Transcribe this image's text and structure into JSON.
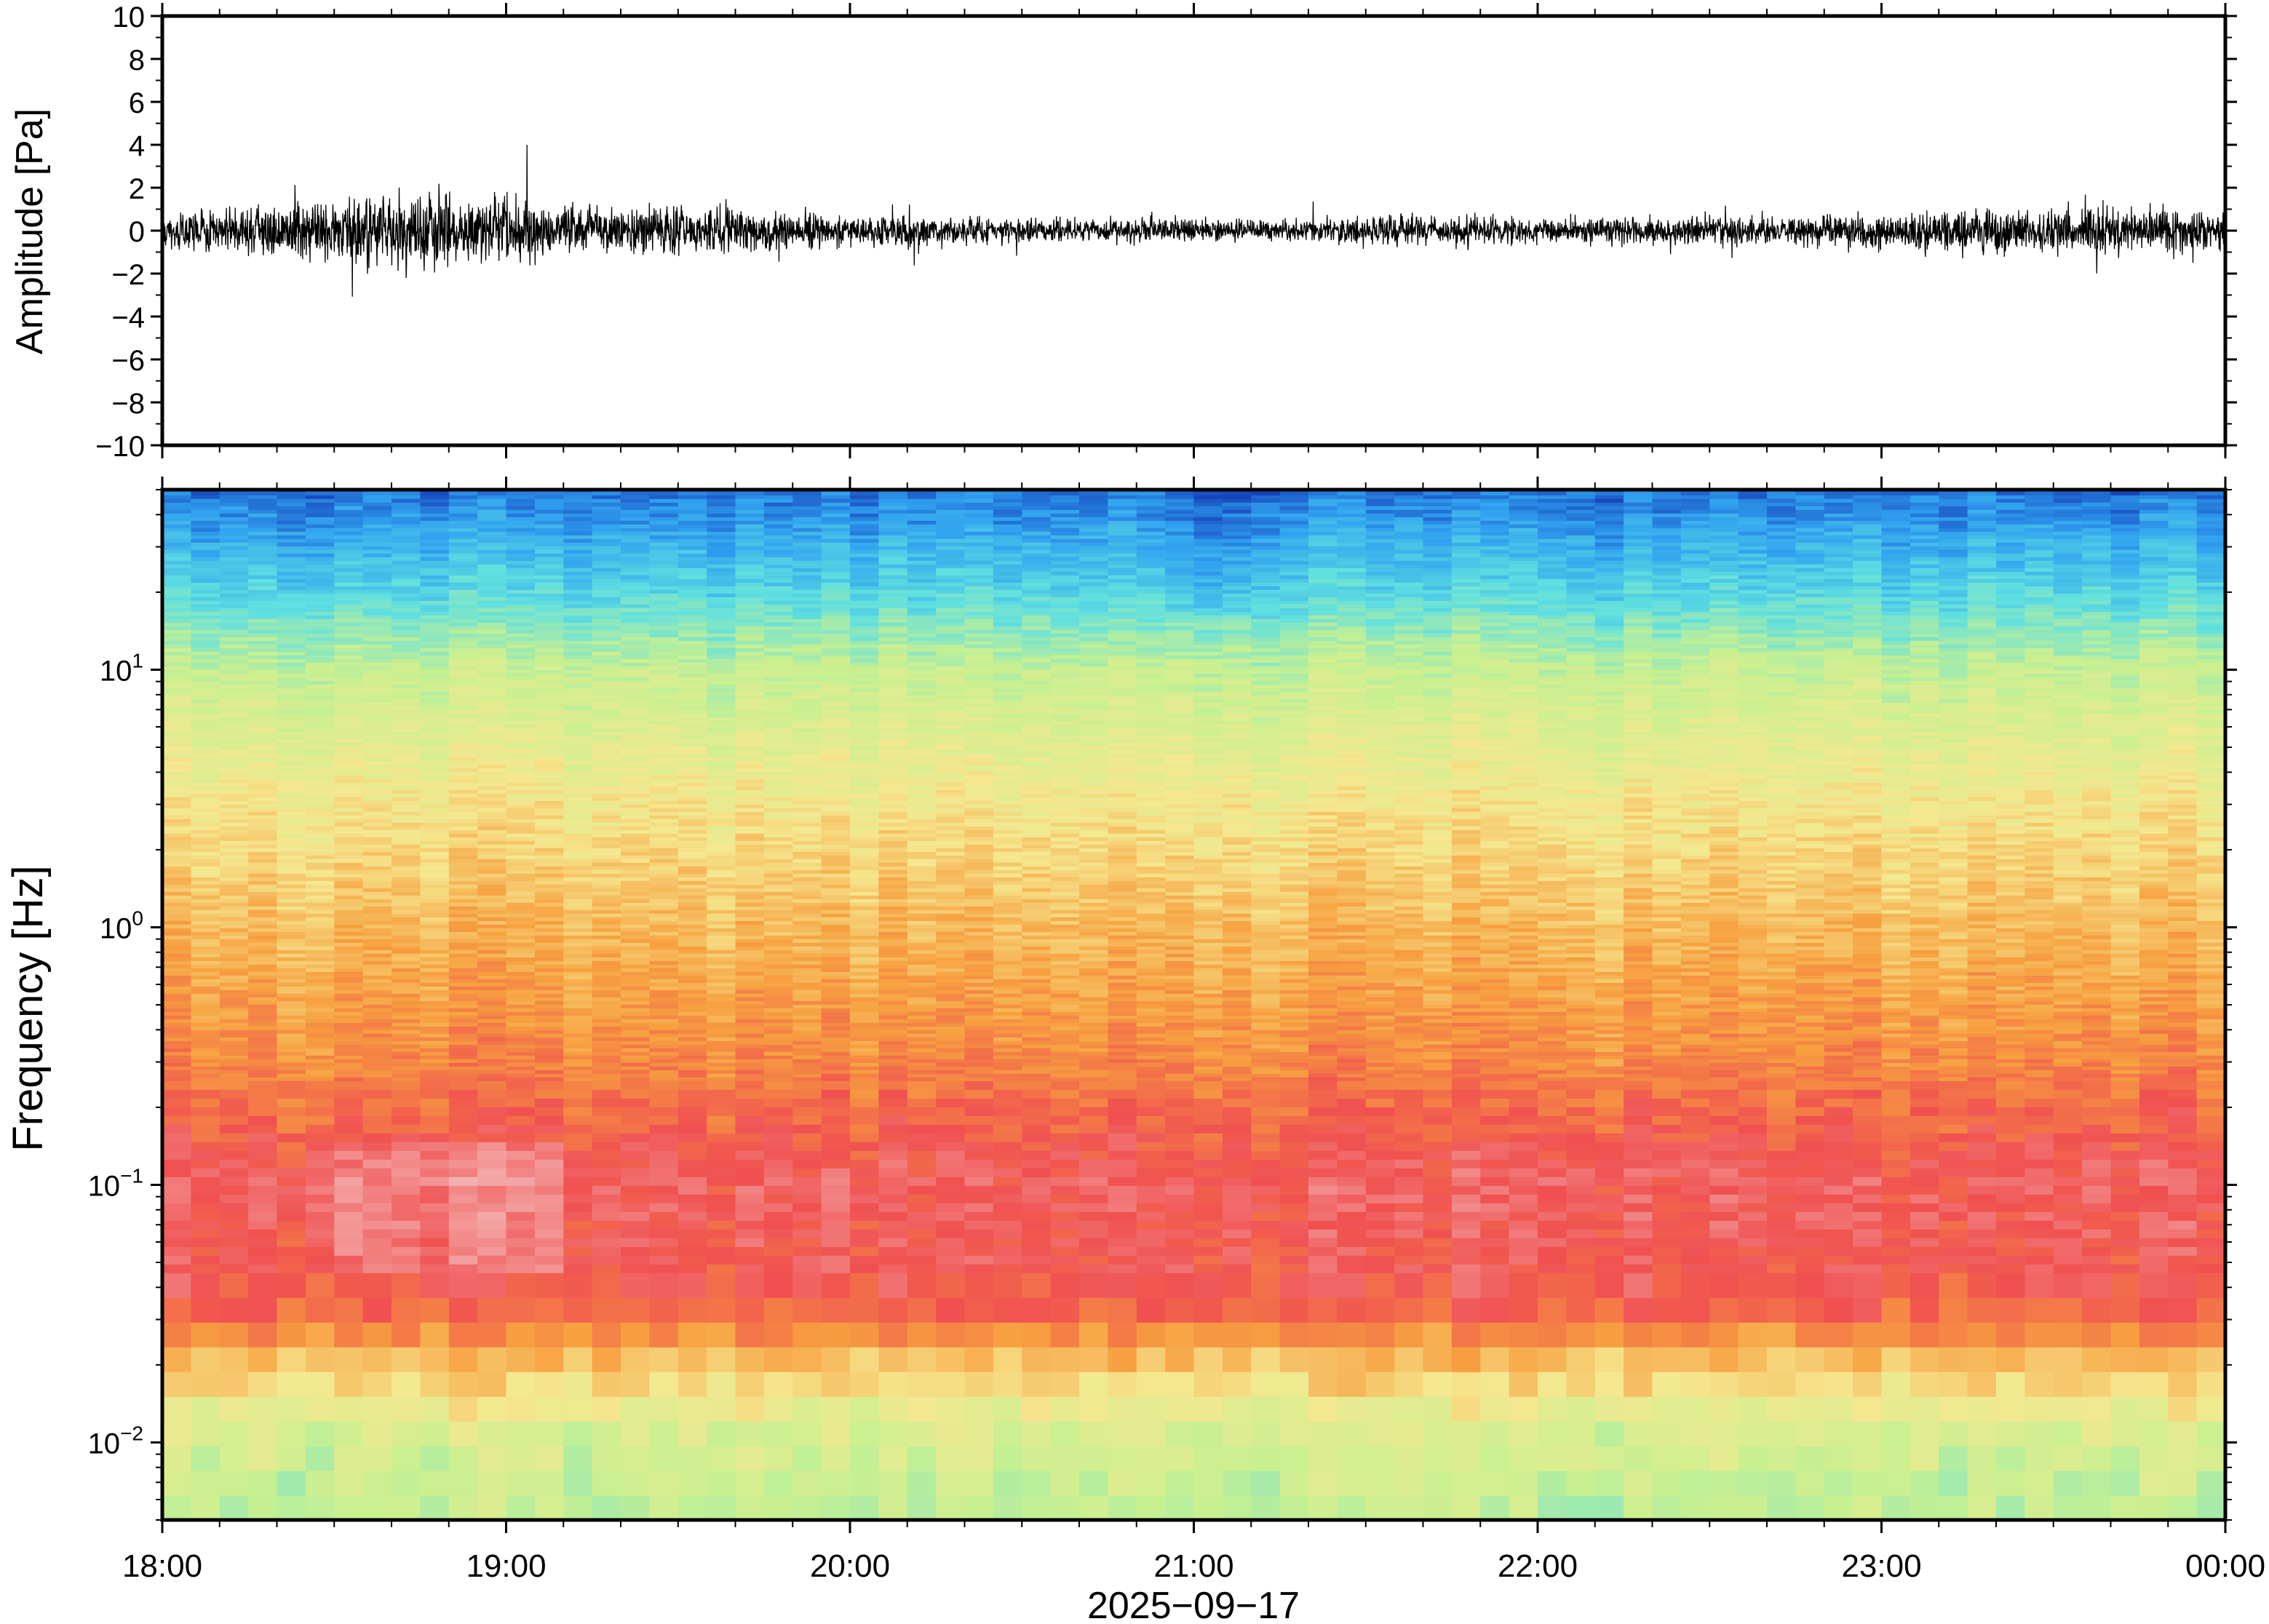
{
  "chart_data": [
    {
      "type": "line",
      "panel": "waveform",
      "ylabel": "Amplitude [Pa]",
      "ylim": [
        -10,
        10
      ],
      "yticks": [
        10,
        8,
        6,
        4,
        2,
        0,
        -2,
        -4,
        -6,
        -8,
        -10
      ],
      "ytick_labels": [
        "10",
        "8",
        "6",
        "4",
        "2",
        "0",
        "−2",
        "−4",
        "−6",
        "−8",
        "−10"
      ],
      "x_range": [
        "18:00",
        "00:00"
      ],
      "series": [
        {
          "x_hours": [
            18.0,
            18.25,
            18.5,
            18.75,
            19.0,
            19.25,
            19.5,
            19.75,
            20.0,
            20.25,
            20.5,
            20.75,
            21.0,
            21.25,
            21.5,
            21.75,
            22.0,
            22.25,
            22.5,
            22.75,
            23.0,
            23.25,
            23.5,
            23.75,
            24.0
          ],
          "envelope": [
            1.5,
            1.8,
            2.6,
            2.9,
            2.5,
            1.9,
            1.7,
            1.6,
            1.3,
            1.2,
            1.0,
            0.9,
            0.9,
            0.9,
            1.1,
            1.2,
            1.1,
            1.0,
            1.1,
            1.2,
            1.5,
            1.6,
            1.7,
            1.8,
            1.7
          ],
          "peak_max": 4.0,
          "peak_min": -3.6
        }
      ]
    },
    {
      "type": "heatmap",
      "panel": "spectrogram",
      "ylabel": "Frequency [Hz]",
      "xlabel": "2025−09−17",
      "yscale": "log",
      "ylim": [
        0.005,
        50
      ],
      "yticks": [
        {
          "value": 0.01,
          "base": "10",
          "exp": "−2"
        },
        {
          "value": 0.1,
          "base": "10",
          "exp": "−1"
        },
        {
          "value": 1,
          "base": "10",
          "exp": "0"
        },
        {
          "value": 10,
          "base": "10",
          "exp": "1"
        }
      ],
      "xticks": [
        {
          "value": 18,
          "label": "18:00"
        },
        {
          "value": 19,
          "label": "19:00"
        },
        {
          "value": 20,
          "label": "20:00"
        },
        {
          "value": 21,
          "label": "21:00"
        },
        {
          "value": 22,
          "label": "22:00"
        },
        {
          "value": 23,
          "label": "23:00"
        },
        {
          "value": 24,
          "label": "00:00"
        }
      ],
      "xlim_hours": [
        18,
        24
      ],
      "colormap": [
        "#f4b0b0",
        "#f05050",
        "#f7a040",
        "#f5e890",
        "#c8f090",
        "#60e0e0",
        "#30a0f0",
        "#1030b0"
      ],
      "power_profile": {
        "log10_freq": [
          -2.3,
          -2.0,
          -1.7,
          -1.5,
          -1.0,
          -0.5,
          0.0,
          0.5,
          1.0,
          1.3,
          1.7
        ],
        "level": [
          0.58,
          0.52,
          0.32,
          0.16,
          0.12,
          0.25,
          0.34,
          0.44,
          0.57,
          0.74,
          0.92
        ]
      }
    }
  ]
}
